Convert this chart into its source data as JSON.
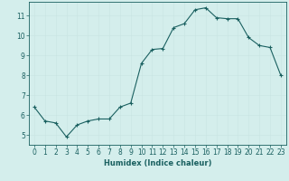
{
  "x": [
    0,
    1,
    2,
    3,
    4,
    5,
    6,
    7,
    8,
    9,
    10,
    11,
    12,
    13,
    14,
    15,
    16,
    17,
    18,
    19,
    20,
    21,
    22,
    23
  ],
  "y": [
    6.4,
    5.7,
    5.6,
    4.9,
    5.5,
    5.7,
    5.8,
    5.8,
    6.4,
    6.6,
    8.6,
    9.3,
    9.35,
    10.4,
    10.6,
    11.3,
    11.4,
    10.9,
    10.85,
    10.85,
    9.9,
    9.5,
    9.4,
    8.0
  ],
  "line_color": "#1a6060",
  "marker": "+",
  "marker_size": 3,
  "bg_color": "#d4eeec",
  "grid_color_minor": "#c8e4e2",
  "grid_color_major": "#b8d8d6",
  "xlabel": "Humidex (Indice chaleur)",
  "xlim": [
    -0.5,
    23.5
  ],
  "ylim": [
    4.5,
    11.7
  ],
  "yticks": [
    5,
    6,
    7,
    8,
    9,
    10,
    11
  ],
  "xticks": [
    0,
    1,
    2,
    3,
    4,
    5,
    6,
    7,
    8,
    9,
    10,
    11,
    12,
    13,
    14,
    15,
    16,
    17,
    18,
    19,
    20,
    21,
    22,
    23
  ],
  "font_color": "#1a6060",
  "label_fontsize": 6,
  "tick_fontsize": 5.5,
  "linewidth": 0.8,
  "markeredgewidth": 0.8
}
